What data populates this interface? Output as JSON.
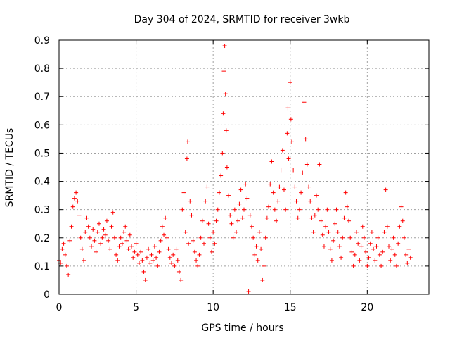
{
  "chart_data": {
    "type": "scatter",
    "title": "Day 304 of 2024, SRMTID for receiver 3wkb",
    "xlabel": "GPS time / hours",
    "ylabel": "SRMTID / TECUs",
    "xlim": [
      0,
      24
    ],
    "ylim": [
      0,
      0.9
    ],
    "xticks": [
      0,
      5,
      10,
      15,
      20
    ],
    "xtick_labels": [
      "0",
      "5",
      "10",
      "15",
      "20"
    ],
    "yticks": [
      0,
      0.1,
      0.2,
      0.3,
      0.4,
      0.5,
      0.6,
      0.7,
      0.8,
      0.9
    ],
    "ytick_labels": [
      "0",
      "0.1",
      "0.2",
      "0.3",
      "0.4",
      "0.5",
      "0.6",
      "0.7",
      "0.8",
      "0.9"
    ],
    "grid": true,
    "marker": "+",
    "color": "#ff0000",
    "series": [
      {
        "name": "SRMTID",
        "points": [
          [
            0.0,
            0.12
          ],
          [
            0.1,
            0.11
          ],
          [
            0.2,
            0.16
          ],
          [
            0.3,
            0.18
          ],
          [
            0.4,
            0.14
          ],
          [
            0.5,
            0.1
          ],
          [
            0.6,
            0.07
          ],
          [
            0.7,
            0.19
          ],
          [
            0.8,
            0.24
          ],
          [
            0.9,
            0.31
          ],
          [
            1.0,
            0.34
          ],
          [
            1.1,
            0.36
          ],
          [
            1.2,
            0.33
          ],
          [
            1.3,
            0.28
          ],
          [
            1.4,
            0.2
          ],
          [
            1.5,
            0.16
          ],
          [
            1.6,
            0.12
          ],
          [
            1.7,
            0.22
          ],
          [
            1.8,
            0.27
          ],
          [
            1.9,
            0.24
          ],
          [
            2.0,
            0.2
          ],
          [
            2.1,
            0.17
          ],
          [
            2.2,
            0.23
          ],
          [
            2.3,
            0.19
          ],
          [
            2.4,
            0.15
          ],
          [
            2.5,
            0.22
          ],
          [
            2.6,
            0.25
          ],
          [
            2.7,
            0.18
          ],
          [
            2.8,
            0.2
          ],
          [
            2.9,
            0.23
          ],
          [
            3.0,
            0.21
          ],
          [
            3.1,
            0.26
          ],
          [
            3.2,
            0.19
          ],
          [
            3.3,
            0.16
          ],
          [
            3.4,
            0.24
          ],
          [
            3.5,
            0.29
          ],
          [
            3.6,
            0.2
          ],
          [
            3.7,
            0.14
          ],
          [
            3.8,
            0.12
          ],
          [
            3.9,
            0.17
          ],
          [
            4.0,
            0.2
          ],
          [
            4.1,
            0.18
          ],
          [
            4.2,
            0.22
          ],
          [
            4.3,
            0.24
          ],
          [
            4.4,
            0.19
          ],
          [
            4.5,
            0.16
          ],
          [
            4.6,
            0.21
          ],
          [
            4.7,
            0.17
          ],
          [
            4.8,
            0.13
          ],
          [
            4.9,
            0.15
          ],
          [
            5.0,
            0.18
          ],
          [
            5.1,
            0.14
          ],
          [
            5.2,
            0.11
          ],
          [
            5.3,
            0.15
          ],
          [
            5.4,
            0.12
          ],
          [
            5.5,
            0.08
          ],
          [
            5.6,
            0.05
          ],
          [
            5.7,
            0.13
          ],
          [
            5.8,
            0.16
          ],
          [
            5.9,
            0.11
          ],
          [
            6.0,
            0.14
          ],
          [
            6.1,
            0.12
          ],
          [
            6.2,
            0.17
          ],
          [
            6.3,
            0.13
          ],
          [
            6.4,
            0.1
          ],
          [
            6.5,
            0.15
          ],
          [
            6.6,
            0.19
          ],
          [
            6.7,
            0.24
          ],
          [
            6.8,
            0.21
          ],
          [
            6.9,
            0.27
          ],
          [
            7.0,
            0.2
          ],
          [
            7.1,
            0.16
          ],
          [
            7.2,
            0.13
          ],
          [
            7.3,
            0.11
          ],
          [
            7.4,
            0.14
          ],
          [
            7.5,
            0.1
          ],
          [
            7.6,
            0.16
          ],
          [
            7.7,
            0.12
          ],
          [
            7.8,
            0.08
          ],
          [
            7.9,
            0.05
          ],
          [
            8.0,
            0.3
          ],
          [
            8.1,
            0.36
          ],
          [
            8.2,
            0.22
          ],
          [
            8.3,
            0.48
          ],
          [
            8.35,
            0.54
          ],
          [
            8.4,
            0.18
          ],
          [
            8.5,
            0.33
          ],
          [
            8.6,
            0.28
          ],
          [
            8.7,
            0.19
          ],
          [
            8.8,
            0.15
          ],
          [
            8.9,
            0.12
          ],
          [
            9.0,
            0.1
          ],
          [
            9.1,
            0.14
          ],
          [
            9.2,
            0.2
          ],
          [
            9.3,
            0.26
          ],
          [
            9.4,
            0.18
          ],
          [
            9.5,
            0.33
          ],
          [
            9.6,
            0.38
          ],
          [
            9.7,
            0.25
          ],
          [
            9.8,
            0.2
          ],
          [
            9.9,
            0.15
          ],
          [
            10.0,
            0.22
          ],
          [
            10.1,
            0.18
          ],
          [
            10.2,
            0.26
          ],
          [
            10.3,
            0.3
          ],
          [
            10.4,
            0.36
          ],
          [
            10.5,
            0.42
          ],
          [
            10.6,
            0.5
          ],
          [
            10.65,
            0.64
          ],
          [
            10.7,
            0.79
          ],
          [
            10.75,
            0.88
          ],
          [
            10.8,
            0.71
          ],
          [
            10.85,
            0.58
          ],
          [
            10.9,
            0.45
          ],
          [
            11.0,
            0.35
          ],
          [
            11.1,
            0.28
          ],
          [
            11.2,
            0.25
          ],
          [
            11.3,
            0.2
          ],
          [
            11.4,
            0.3
          ],
          [
            11.5,
            0.22
          ],
          [
            11.6,
            0.26
          ],
          [
            11.7,
            0.32
          ],
          [
            11.8,
            0.37
          ],
          [
            11.9,
            0.27
          ],
          [
            12.0,
            0.3
          ],
          [
            12.1,
            0.39
          ],
          [
            12.2,
            0.34
          ],
          [
            12.3,
            0.01
          ],
          [
            12.4,
            0.28
          ],
          [
            12.5,
            0.24
          ],
          [
            12.6,
            0.2
          ],
          [
            12.7,
            0.14
          ],
          [
            12.8,
            0.17
          ],
          [
            12.9,
            0.12
          ],
          [
            13.0,
            0.22
          ],
          [
            13.1,
            0.16
          ],
          [
            13.2,
            0.05
          ],
          [
            13.3,
            0.1
          ],
          [
            13.4,
            0.2
          ],
          [
            13.5,
            0.27
          ],
          [
            13.6,
            0.31
          ],
          [
            13.7,
            0.39
          ],
          [
            13.8,
            0.47
          ],
          [
            13.9,
            0.36
          ],
          [
            14.0,
            0.3
          ],
          [
            14.1,
            0.26
          ],
          [
            14.2,
            0.33
          ],
          [
            14.3,
            0.38
          ],
          [
            14.4,
            0.44
          ],
          [
            14.5,
            0.51
          ],
          [
            14.6,
            0.37
          ],
          [
            14.7,
            0.3
          ],
          [
            14.8,
            0.57
          ],
          [
            14.85,
            0.66
          ],
          [
            14.9,
            0.48
          ],
          [
            15.0,
            0.75
          ],
          [
            15.05,
            0.62
          ],
          [
            15.1,
            0.54
          ],
          [
            15.2,
            0.44
          ],
          [
            15.3,
            0.38
          ],
          [
            15.4,
            0.33
          ],
          [
            15.5,
            0.27
          ],
          [
            15.6,
            0.3
          ],
          [
            15.7,
            0.36
          ],
          [
            15.8,
            0.43
          ],
          [
            15.9,
            0.68
          ],
          [
            16.0,
            0.55
          ],
          [
            16.1,
            0.46
          ],
          [
            16.2,
            0.38
          ],
          [
            16.3,
            0.33
          ],
          [
            16.4,
            0.27
          ],
          [
            16.5,
            0.22
          ],
          [
            16.6,
            0.28
          ],
          [
            16.7,
            0.35
          ],
          [
            16.8,
            0.3
          ],
          [
            16.9,
            0.46
          ],
          [
            17.0,
            0.26
          ],
          [
            17.1,
            0.21
          ],
          [
            17.2,
            0.17
          ],
          [
            17.3,
            0.24
          ],
          [
            17.4,
            0.3
          ],
          [
            17.5,
            0.22
          ],
          [
            17.6,
            0.16
          ],
          [
            17.7,
            0.12
          ],
          [
            17.8,
            0.19
          ],
          [
            17.9,
            0.25
          ],
          [
            18.0,
            0.3
          ],
          [
            18.1,
            0.22
          ],
          [
            18.2,
            0.17
          ],
          [
            18.3,
            0.13
          ],
          [
            18.4,
            0.2
          ],
          [
            18.5,
            0.27
          ],
          [
            18.6,
            0.36
          ],
          [
            18.7,
            0.31
          ],
          [
            18.8,
            0.26
          ],
          [
            18.9,
            0.2
          ],
          [
            19.0,
            0.15
          ],
          [
            19.1,
            0.1
          ],
          [
            19.2,
            0.14
          ],
          [
            19.3,
            0.22
          ],
          [
            19.4,
            0.18
          ],
          [
            19.5,
            0.12
          ],
          [
            19.6,
            0.17
          ],
          [
            19.7,
            0.24
          ],
          [
            19.8,
            0.2
          ],
          [
            19.9,
            0.15
          ],
          [
            20.0,
            0.1
          ],
          [
            20.1,
            0.13
          ],
          [
            20.2,
            0.18
          ],
          [
            20.3,
            0.22
          ],
          [
            20.4,
            0.16
          ],
          [
            20.5,
            0.12
          ],
          [
            20.6,
            0.17
          ],
          [
            20.7,
            0.2
          ],
          [
            20.8,
            0.14
          ],
          [
            20.9,
            0.1
          ],
          [
            21.0,
            0.15
          ],
          [
            21.1,
            0.22
          ],
          [
            21.2,
            0.37
          ],
          [
            21.3,
            0.24
          ],
          [
            21.4,
            0.17
          ],
          [
            21.5,
            0.12
          ],
          [
            21.6,
            0.16
          ],
          [
            21.7,
            0.2
          ],
          [
            21.8,
            0.14
          ],
          [
            21.9,
            0.1
          ],
          [
            22.0,
            0.18
          ],
          [
            22.1,
            0.24
          ],
          [
            22.2,
            0.31
          ],
          [
            22.3,
            0.26
          ],
          [
            22.4,
            0.2
          ],
          [
            22.5,
            0.14
          ],
          [
            22.6,
            0.11
          ],
          [
            22.7,
            0.16
          ],
          [
            22.8,
            0.13
          ]
        ]
      }
    ]
  }
}
